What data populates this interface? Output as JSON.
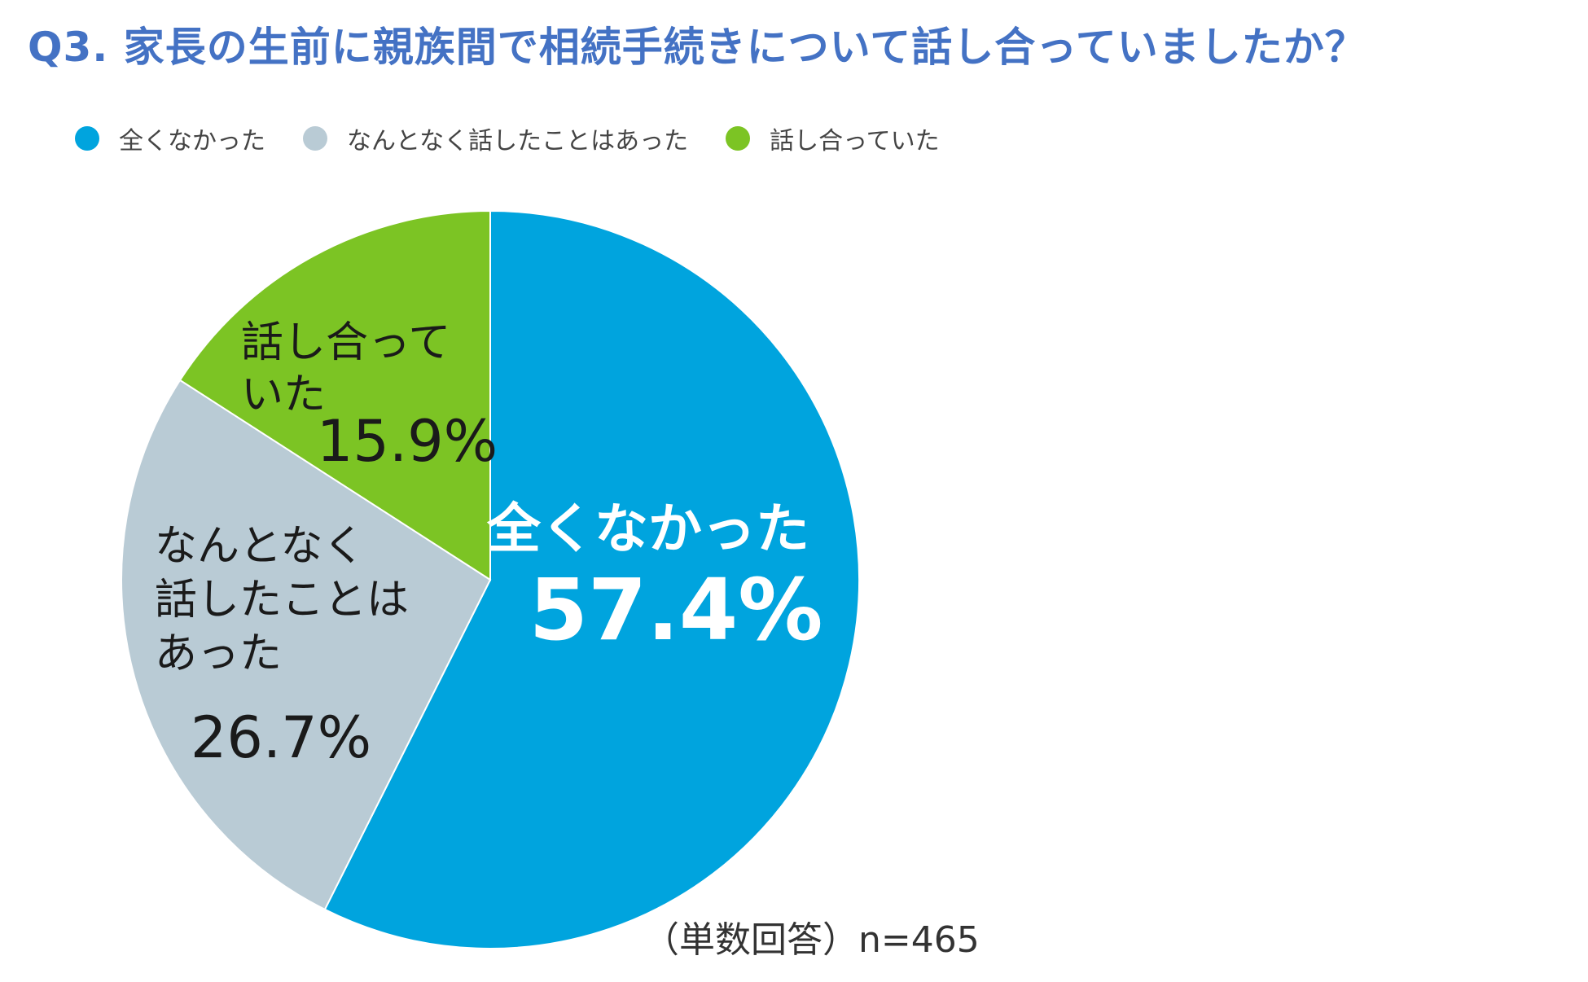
{
  "title": "Q3. 家長の生前に親族間で相続手続きについて話し合っていましたか？",
  "note": "（単数回答）n=465",
  "chart_data": {
    "type": "pie",
    "title": "Q3. 家長の生前に親族間で相続手続きについて話し合っていましたか？",
    "legend_position": "top-left",
    "slices": [
      {
        "name": "全くなかった",
        "value": 57.4,
        "value_label": "57.4%",
        "label_lines": [
          "全くなかった"
        ],
        "color": "#00a4de",
        "label_color": "#ffffff",
        "label_bold": true
      },
      {
        "name": "なんとなく話したことはあった",
        "value": 26.7,
        "value_label": "26.7%",
        "label_lines": [
          "なんとなく",
          "話したことは",
          "あった"
        ],
        "color": "#b9cbd5",
        "label_color": "#1a1a1a",
        "label_bold": false
      },
      {
        "name": "話し合っていた",
        "value": 15.9,
        "value_label": "15.9%",
        "label_lines": [
          "話し合って",
          "いた"
        ],
        "color": "#7cc424",
        "label_color": "#1a1a1a",
        "label_bold": false
      }
    ]
  }
}
